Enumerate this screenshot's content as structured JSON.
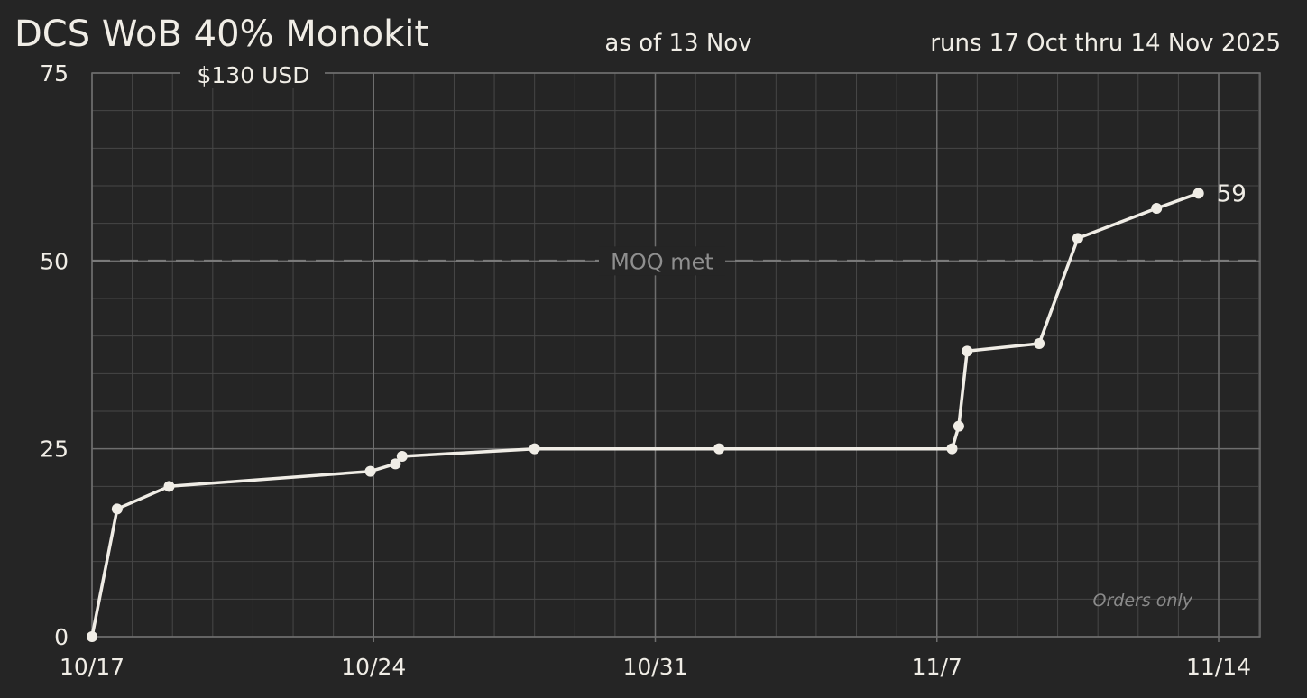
{
  "title": "DCS WoB 40% Monokit",
  "as_of": "as of 13 Nov",
  "run_dates": "runs 17 Oct thru 14 Nov 2025",
  "price": "$130 USD",
  "moq_label": "MOQ met",
  "note": "Orders only",
  "colors": {
    "background": "#252525",
    "line": "#f0ede6",
    "grid_major": "#6e6e6e",
    "grid_minor": "#474747",
    "moq_line": "#7a7a7a"
  },
  "chart_data": {
    "type": "line",
    "title": "DCS WoB 40% Monokit",
    "xlabel": "",
    "ylabel": "",
    "xlim": [
      "2025-10-17",
      "2025-11-14"
    ],
    "ylim": [
      0,
      75
    ],
    "x_ticks": [
      "10/17",
      "10/24",
      "10/31",
      "11/7",
      "11/14"
    ],
    "y_ticks": [
      0,
      25,
      50,
      75
    ],
    "grid": true,
    "reference_line": {
      "y": 50,
      "label": "MOQ met",
      "style": "dashed"
    },
    "end_label": "59",
    "points": [
      {
        "x": "2025-10-17 00:00",
        "y": 0
      },
      {
        "x": "2025-10-17 15:00",
        "y": 17
      },
      {
        "x": "2025-10-18 22:00",
        "y": 20
      },
      {
        "x": "2025-10-23 22:00",
        "y": 22
      },
      {
        "x": "2025-10-24 13:00",
        "y": 23
      },
      {
        "x": "2025-10-24 17:00",
        "y": 24
      },
      {
        "x": "2025-10-28 00:00",
        "y": 25
      },
      {
        "x": "2025-11-01 14:00",
        "y": 25
      },
      {
        "x": "2025-11-07 09:00",
        "y": 25
      },
      {
        "x": "2025-11-07 13:00",
        "y": 28
      },
      {
        "x": "2025-11-07 18:00",
        "y": 38
      },
      {
        "x": "2025-11-09 13:00",
        "y": 39
      },
      {
        "x": "2025-11-10 12:00",
        "y": 53
      },
      {
        "x": "2025-11-12 11:00",
        "y": 57
      },
      {
        "x": "2025-11-13 12:00",
        "y": 59
      }
    ]
  }
}
